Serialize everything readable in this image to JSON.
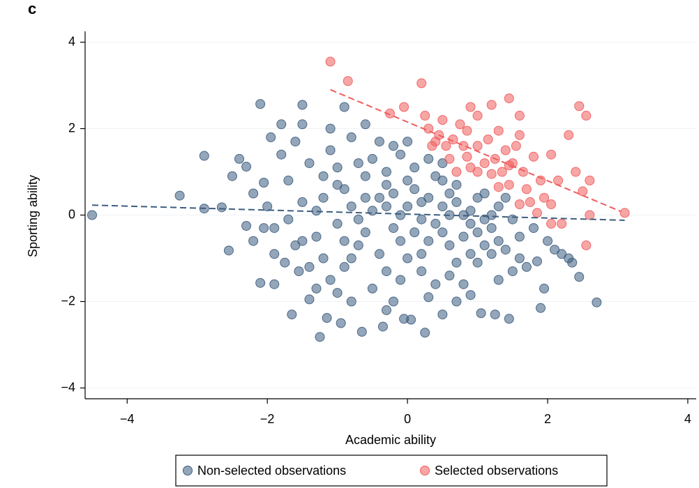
{
  "chart_data": {
    "type": "scatter",
    "panel_label": "c",
    "xlabel": "Academic ability",
    "ylabel": "Sporting ability",
    "xlim": [
      -4.6,
      4.12
    ],
    "ylim": [
      -4.25,
      4.25
    ],
    "xticks": [
      {
        "value": -4,
        "label": "−4"
      },
      {
        "value": -2,
        "label": "−2"
      },
      0,
      2,
      4
    ],
    "yticks": [
      {
        "value": -4,
        "label": "−4"
      },
      {
        "value": -2,
        "label": "−2"
      },
      0,
      2,
      4
    ],
    "grid": true,
    "legend": "bottom",
    "series": [
      {
        "name": "Non-selected observations",
        "color": "#3d5d7f",
        "x": [
          -4.5,
          -3.25,
          -2.9,
          -2.9,
          -2.65,
          -2.55,
          -2.4,
          -2.3,
          -2.2,
          -2.1,
          -2.1,
          -1.9,
          -1.95,
          -1.8,
          -1.5,
          -1.5,
          -1.65,
          -1.25,
          -1.15,
          -0.9,
          -0.95,
          -0.65,
          -0.35,
          -0.2,
          -0.05,
          0.05,
          0.25,
          0.5,
          0.9,
          1.05,
          1.25,
          1.45,
          1.9,
          1.95,
          2.45,
          2.7,
          2.35,
          2.2,
          1.85,
          -2.05,
          -2.3,
          -2.05,
          -1.9,
          -1.75,
          -1.55,
          -1.4,
          -1.0,
          -1.5,
          -1.3,
          -1.2,
          -1.1,
          -1.0,
          -0.9,
          -0.8,
          -0.7,
          -0.6,
          -0.5,
          -0.4,
          -0.3,
          -0.2,
          -0.1,
          0.0,
          0.1,
          0.2,
          0.3,
          0.4,
          0.5,
          0.6,
          0.7,
          0.8,
          0.9,
          1.0,
          1.1,
          1.2,
          1.3,
          1.4,
          1.5,
          1.6,
          1.7,
          1.8,
          -1.7,
          -1.6,
          -1.4,
          -1.3,
          -1.2,
          -1.1,
          -1.0,
          -0.9,
          -0.8,
          -0.7,
          -0.6,
          -0.5,
          -0.4,
          -0.3,
          -0.2,
          -0.1,
          0.0,
          0.1,
          0.2,
          0.3,
          0.4,
          0.5,
          0.6,
          0.7,
          0.8,
          0.9,
          1.0,
          1.1,
          1.2,
          1.3,
          1.4,
          1.6,
          -2.0,
          -1.9,
          -1.8,
          -1.7,
          -1.5,
          -1.4,
          -1.2,
          -1.0,
          -0.9,
          -0.8,
          -0.7,
          -0.6,
          -0.5,
          -0.4,
          -0.3,
          -0.2,
          -0.1,
          0.0,
          0.1,
          0.2,
          0.3,
          0.4,
          0.5,
          0.6,
          0.7,
          0.8,
          1.0,
          1.1,
          1.2,
          1.5,
          2.0,
          2.1,
          2.3,
          -1.6,
          -1.1,
          -0.6,
          -0.3,
          0.3,
          0.7,
          -0.8,
          -1.3,
          0.0,
          0.5,
          -2.2,
          -2.5,
          -0.1,
          0.2,
          0.9,
          1.3,
          0.6,
          -0.3
        ],
        "values": [
          0,
          0.45,
          1.37,
          0.15,
          0.18,
          -0.82,
          1.3,
          1.12,
          0.5,
          2.57,
          -1.57,
          -1.6,
          1.8,
          2.1,
          2.55,
          2.1,
          -2.3,
          -2.82,
          -2.38,
          2.5,
          -2.5,
          -2.7,
          -2.58,
          -2.0,
          -2.4,
          -2.42,
          -2.72,
          -2.3,
          -1.85,
          -2.27,
          -2.3,
          -2.4,
          -2.15,
          -1.7,
          -1.43,
          -2.02,
          -1.1,
          -0.9,
          -1.07,
          0.75,
          -0.25,
          -0.3,
          -0.9,
          -1.1,
          -1.3,
          -1.95,
          -1.8,
          0.3,
          -0.5,
          0.9,
          1.5,
          -0.2,
          0.6,
          -1.0,
          1.2,
          -0.4,
          0.1,
          1.7,
          -1.3,
          0.5,
          -0.6,
          0.2,
          1.1,
          -0.9,
          0.4,
          -0.2,
          0.8,
          -1.4,
          0.3,
          -0.5,
          0.1,
          -1.1,
          0.5,
          -0.3,
          0.2,
          -0.8,
          -0.1,
          -0.5,
          -1.2,
          -0.3,
          0.8,
          -0.7,
          1.2,
          0.1,
          -1.0,
          -1.5,
          0.7,
          -0.6,
          1.8,
          -0.1,
          0.9,
          -1.7,
          0.4,
          1.0,
          -0.3,
          1.4,
          -1.0,
          0.6,
          -0.1,
          1.3,
          -1.6,
          0.2,
          -0.7,
          0.7,
          -1.6,
          -0.2,
          0.4,
          -0.7,
          0.0,
          -1.5,
          0.4,
          -1.0,
          0.2,
          -0.3,
          1.4,
          -0.1,
          -0.6,
          -1.2,
          0.4,
          1.1,
          -1.2,
          0.2,
          -0.7,
          0.4,
          1.3,
          -0.9,
          0.2,
          1.6,
          0.0,
          0.8,
          -0.4,
          0.3,
          -0.6,
          0.9,
          -0.4,
          0.5,
          -1.1,
          0.0,
          -0.4,
          -0.1,
          -0.9,
          -1.3,
          -0.6,
          -0.8,
          -1.0,
          1.7,
          2.0,
          2.1,
          -2.2,
          -1.9,
          -2.0,
          -2.0,
          -1.7,
          1.7,
          1.2,
          -0.6,
          0.9,
          -1.5,
          -1.3,
          -0.9,
          -0.6,
          0.0,
          0.7
        ],
        "fit": {
          "x": [
            -4.5,
            3.1
          ],
          "y": [
            0.23,
            -0.12
          ]
        }
      },
      {
        "name": "Selected observations",
        "color": "#f05c5c",
        "x": [
          -1.1,
          -0.85,
          0.2,
          -0.25,
          -0.05,
          0.25,
          0.3,
          0.5,
          0.45,
          0.35,
          0.6,
          0.65,
          0.75,
          0.85,
          0.9,
          1.0,
          1.2,
          1.45,
          1.3,
          1.6,
          1.55,
          1.4,
          1.25,
          1.1,
          1.0,
          0.9,
          0.85,
          1.5,
          1.65,
          1.8,
          2.05,
          1.9,
          2.15,
          2.4,
          2.5,
          2.3,
          2.45,
          2.55,
          2.6,
          2.55,
          2.6,
          3.1,
          1.95,
          1.85,
          2.05,
          2.2,
          1.7,
          1.45,
          1.3,
          1.2,
          1.6,
          1.75,
          2.05,
          0.7,
          0.8,
          1.0,
          1.15,
          1.6,
          1.35,
          1.45,
          0.4,
          0.55
        ],
        "values": [
          3.55,
          3.1,
          3.05,
          2.35,
          2.5,
          2.3,
          2.0,
          2.2,
          1.85,
          1.6,
          1.3,
          1.75,
          2.1,
          1.95,
          2.5,
          2.3,
          2.55,
          2.7,
          1.95,
          1.85,
          1.6,
          1.5,
          1.3,
          1.2,
          1.0,
          1.1,
          1.35,
          1.2,
          1.0,
          1.35,
          1.4,
          0.8,
          0.8,
          1.0,
          0.55,
          1.85,
          2.52,
          2.3,
          0.8,
          -0.7,
          0.0,
          0.05,
          0.4,
          0.05,
          -0.2,
          -0.2,
          0.6,
          0.7,
          0.65,
          0.95,
          0.25,
          0.3,
          0.25,
          1.0,
          1.6,
          1.6,
          1.75,
          2.3,
          1.0,
          1.15,
          1.7,
          1.6
        ],
        "fit": {
          "x": [
            -1.1,
            3.05
          ],
          "y": [
            2.9,
            0.08
          ]
        }
      }
    ]
  }
}
